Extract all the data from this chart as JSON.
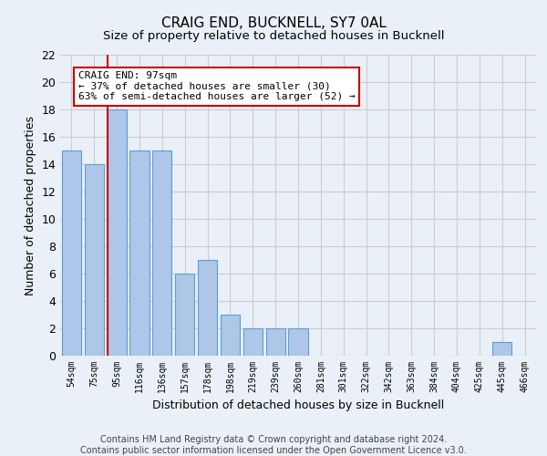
{
  "title": "CRAIG END, BUCKNELL, SY7 0AL",
  "subtitle": "Size of property relative to detached houses in Bucknell",
  "xlabel": "Distribution of detached houses by size in Bucknell",
  "ylabel": "Number of detached properties",
  "categories": [
    "54sqm",
    "75sqm",
    "95sqm",
    "116sqm",
    "136sqm",
    "157sqm",
    "178sqm",
    "198sqm",
    "219sqm",
    "239sqm",
    "260sqm",
    "281sqm",
    "301sqm",
    "322sqm",
    "342sqm",
    "363sqm",
    "384sqm",
    "404sqm",
    "425sqm",
    "445sqm",
    "466sqm"
  ],
  "values": [
    15,
    14,
    18,
    15,
    15,
    6,
    7,
    3,
    2,
    2,
    2,
    0,
    0,
    0,
    0,
    0,
    0,
    0,
    0,
    1,
    0
  ],
  "bar_color": "#aec6e8",
  "bar_edge_color": "#5a9fd4",
  "redline_index": 2,
  "redline_color": "#cc0000",
  "annotation_text": "CRAIG END: 97sqm\n← 37% of detached houses are smaller (30)\n63% of semi-detached houses are larger (52) →",
  "annotation_box_color": "#ffffff",
  "annotation_box_edge_color": "#cc0000",
  "ylim": [
    0,
    22
  ],
  "yticks": [
    0,
    2,
    4,
    6,
    8,
    10,
    12,
    14,
    16,
    18,
    20,
    22
  ],
  "grid_color": "#cccccc",
  "background_color": "#eaf0f8",
  "footer_text": "Contains HM Land Registry data © Crown copyright and database right 2024.\nContains public sector information licensed under the Open Government Licence v3.0.",
  "title_fontsize": 11,
  "subtitle_fontsize": 9.5,
  "xlabel_fontsize": 9,
  "ylabel_fontsize": 9,
  "footer_fontsize": 7,
  "annot_fontsize": 8,
  "tick_fontsize": 7
}
